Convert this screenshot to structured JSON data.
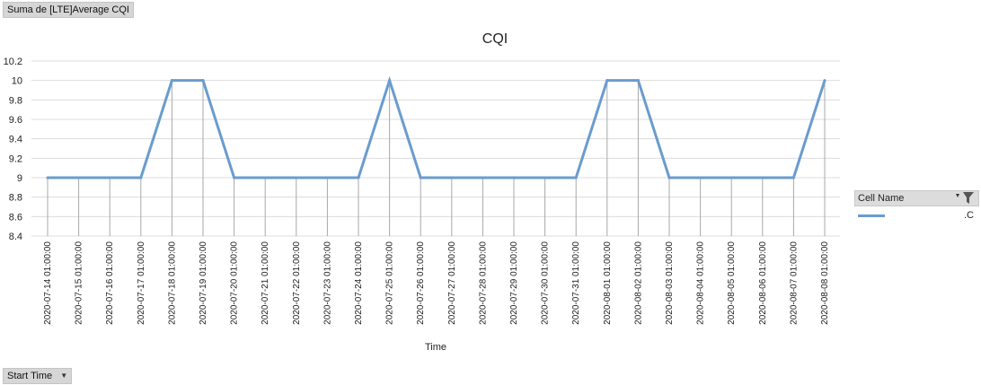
{
  "value_field": {
    "label": "Suma de [LTE]Average CQI"
  },
  "axis_field": {
    "label": "Start Time"
  },
  "legend": {
    "header": "Cell Name",
    "entry_label": ".C"
  },
  "colors": {
    "line": "#6a9ccf",
    "grid": "#dcdcdc",
    "field_button": "#d6d6d6"
  },
  "chart_data": {
    "type": "line",
    "title": "CQI",
    "xlabel": "Time",
    "ylabel": "",
    "ylim": [
      8.4,
      10.2
    ],
    "y_ticks": [
      8.4,
      8.6,
      8.8,
      9,
      9.2,
      9.4,
      9.6,
      9.8,
      10,
      10.2
    ],
    "grid": "horizontal",
    "legend_position": "right",
    "categories": [
      "2020-07-14 01:00:00",
      "2020-07-15 01:00:00",
      "2020-07-16 01:00:00",
      "2020-07-17 01:00:00",
      "2020-07-18 01:00:00",
      "2020-07-19 01:00:00",
      "2020-07-20 01:00:00",
      "2020-07-21 01:00:00",
      "2020-07-22 01:00:00",
      "2020-07-23 01:00:00",
      "2020-07-24 01:00:00",
      "2020-07-25 01:00:00",
      "2020-07-26 01:00:00",
      "2020-07-27 01:00:00",
      "2020-07-28 01:00:00",
      "2020-07-29 01:00:00",
      "2020-07-30 01:00:00",
      "2020-07-31 01:00:00",
      "2020-08-01 01:00:00",
      "2020-08-02 01:00:00",
      "2020-08-03 01:00:00",
      "2020-08-04 01:00:00",
      "2020-08-05 01:00:00",
      "2020-08-06 01:00:00",
      "2020-08-07 01:00:00",
      "2020-08-08 01:00:00"
    ],
    "series": [
      {
        "name": ".C",
        "values": [
          9,
          9,
          9,
          9,
          10,
          10,
          9,
          9,
          9,
          9,
          9,
          10,
          9,
          9,
          9,
          9,
          9,
          9,
          10,
          10,
          9,
          9,
          9,
          9,
          9,
          10
        ]
      }
    ]
  }
}
